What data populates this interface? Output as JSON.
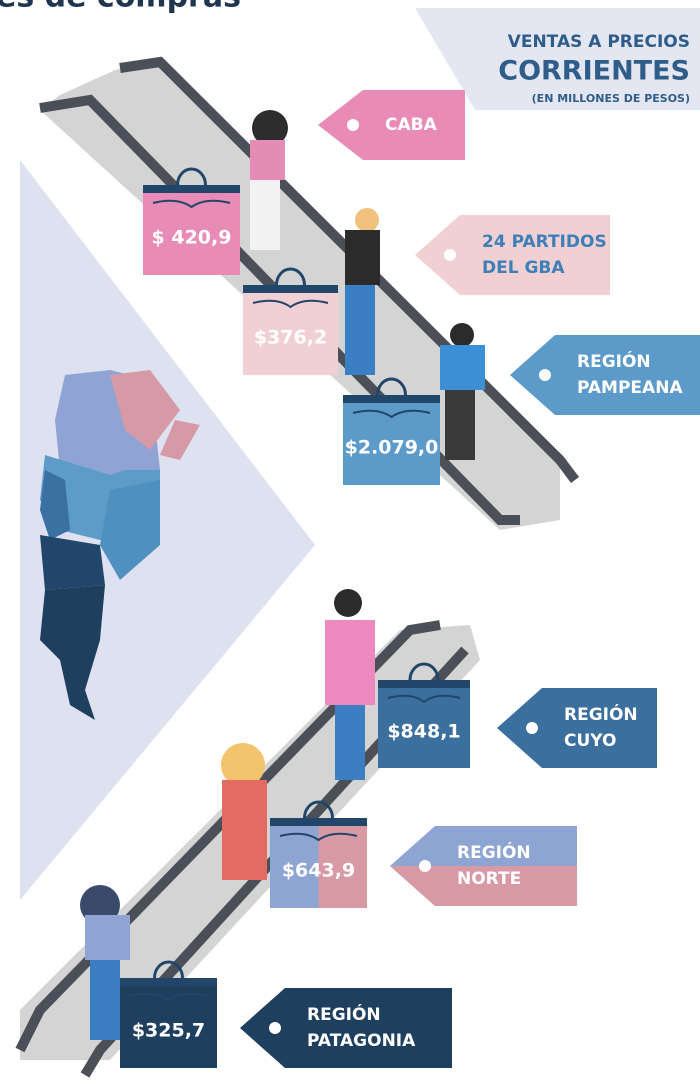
{
  "title": "es de compras",
  "header": {
    "line1": "VENTAS A PRECIOS",
    "line2": "CORRIENTES",
    "line3": "(EN MILLONES DE PESOS)"
  },
  "regions": [
    {
      "name": [
        "CABA"
      ],
      "value": "$ 420,9"
    },
    {
      "name": [
        "24 PARTIDOS",
        "DEL GBA"
      ],
      "value": "$376,2"
    },
    {
      "name": [
        "REGIÓN",
        "PAMPEANA"
      ],
      "value": "$2.079,0"
    },
    {
      "name": [
        "REGIÓN",
        "CUYO"
      ],
      "value": "$848,1"
    },
    {
      "name": [
        "REGIÓN",
        "NORTE"
      ],
      "value": "$643,9"
    },
    {
      "name": [
        "REGIÓN",
        "PATAGONIA"
      ],
      "value": "$325,7"
    }
  ]
}
